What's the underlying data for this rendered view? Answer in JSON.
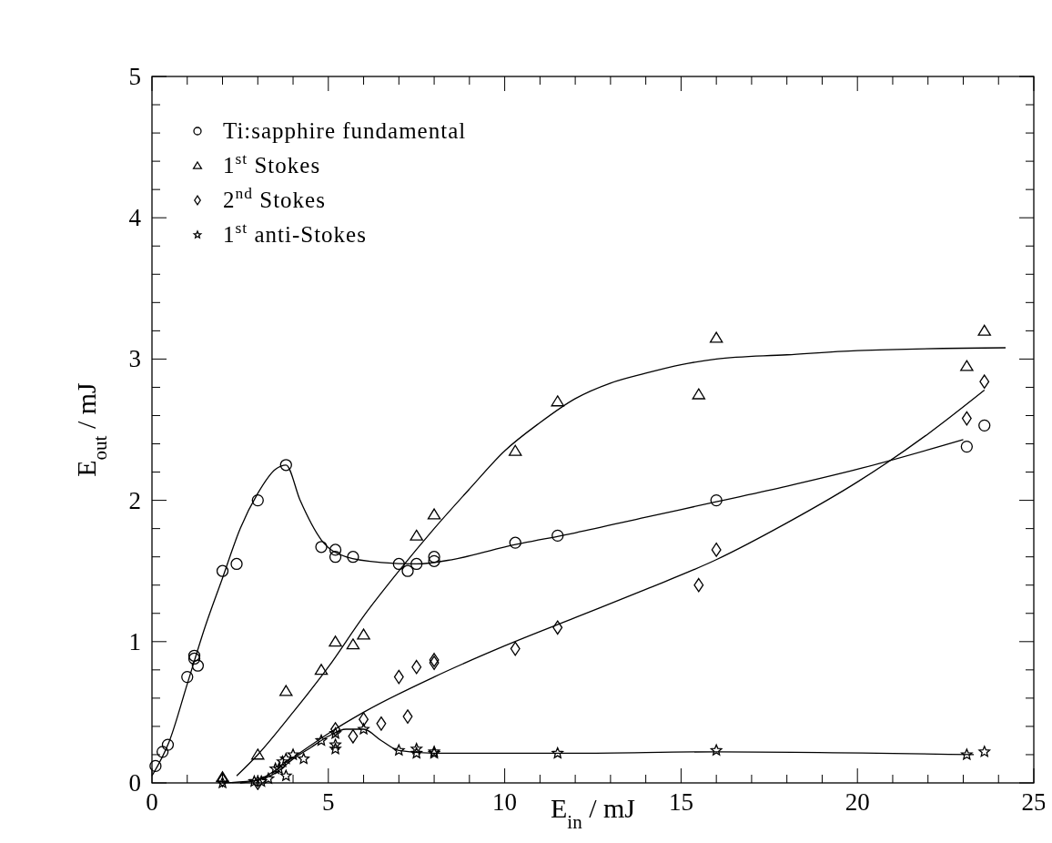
{
  "chart_data": {
    "type": "scatter",
    "xlabel": "E$_{in}$ / mJ",
    "ylabel": "E$_{out}$ / mJ",
    "xlim": [
      0,
      25
    ],
    "ylim": [
      0,
      5
    ],
    "xticks": [
      0,
      {
        "value": 1,
        "label": null
      },
      {
        "value": 2,
        "label": null
      },
      {
        "value": 3,
        "label": null
      },
      {
        "value": 4,
        "label": null
      },
      5,
      {
        "value": 6,
        "label": null
      },
      {
        "value": 7,
        "label": null
      },
      {
        "value": 8,
        "label": null
      },
      {
        "value": 9,
        "label": null
      },
      10,
      {
        "value": 11,
        "label": null
      },
      {
        "value": 12,
        "label": null
      },
      {
        "value": 13,
        "label": null
      },
      {
        "value": 14,
        "label": null
      },
      15,
      {
        "value": 16,
        "label": null
      },
      {
        "value": 17,
        "label": null
      },
      {
        "value": 18,
        "label": null
      },
      {
        "value": 19,
        "label": null
      },
      20,
      {
        "value": 21,
        "label": null
      },
      {
        "value": 22,
        "label": null
      },
      {
        "value": 23,
        "label": null
      },
      {
        "value": 24,
        "label": null
      },
      25
    ],
    "yticks": [
      0,
      {
        "value": 0.2,
        "label": null
      },
      {
        "value": 0.4,
        "label": null
      },
      {
        "value": 0.6,
        "label": null
      },
      {
        "value": 0.8,
        "label": null
      },
      1,
      {
        "value": 1.2,
        "label": null
      },
      {
        "value": 1.4,
        "label": null
      },
      {
        "value": 1.6,
        "label": null
      },
      {
        "value": 1.8,
        "label": null
      },
      2,
      {
        "value": 2.2,
        "label": null
      },
      {
        "value": 2.4,
        "label": null
      },
      {
        "value": 2.6,
        "label": null
      },
      {
        "value": 2.8,
        "label": null
      },
      3,
      {
        "value": 3.2,
        "label": null
      },
      {
        "value": 3.4,
        "label": null
      },
      {
        "value": 3.6,
        "label": null
      },
      {
        "value": 3.8,
        "label": null
      },
      4,
      {
        "value": 4.2,
        "label": null
      },
      {
        "value": 4.4,
        "label": null
      },
      {
        "value": 4.6,
        "label": null
      },
      {
        "value": 4.8,
        "label": null
      },
      5
    ],
    "grid": false,
    "legend": "top left",
    "series": [
      {
        "name": "Ti:sapphire fundamental",
        "type": "scatter",
        "marker": "circle",
        "color": "#000000",
        "x": [
          0.1,
          0.3,
          0.45,
          1.0,
          1.2,
          1.2,
          1.3,
          2.0,
          2.4,
          3.0,
          3.8,
          4.8,
          5.2,
          5.2,
          5.7,
          7.0,
          7.25,
          7.5,
          8.0,
          8.0,
          10.3,
          11.5,
          16.0,
          23.1,
          23.6
        ],
        "values": [
          0.12,
          0.22,
          0.27,
          0.75,
          0.9,
          0.88,
          0.83,
          1.5,
          1.55,
          2.0,
          2.25,
          1.67,
          1.65,
          1.6,
          1.6,
          1.55,
          1.5,
          1.55,
          1.6,
          1.57,
          1.7,
          1.75,
          2.0,
          2.38,
          2.53
        ]
      },
      {
        "name": "1$^{st}$ Stokes",
        "type": "scatter",
        "marker": "triangle",
        "color": "#000000",
        "x": [
          2,
          3,
          3.8,
          4.8,
          5.2,
          5.7,
          6.0,
          7.5,
          8.0,
          10.3,
          11.5,
          15.5,
          16,
          23.1,
          23.6
        ],
        "values": [
          0.04,
          0.2,
          0.65,
          0.8,
          1.0,
          0.98,
          1.05,
          1.75,
          1.9,
          2.35,
          2.7,
          2.75,
          3.15,
          2.95,
          3.2
        ]
      },
      {
        "name": "2$^{nd}$ Stokes",
        "type": "scatter",
        "marker": "diamond",
        "color": "#000000",
        "x": [
          2,
          3,
          5.2,
          5.7,
          6.0,
          6.5,
          7.0,
          7.25,
          7.5,
          8.0,
          8.0,
          10.3,
          11.5,
          15.5,
          16,
          23.1,
          23.6
        ],
        "values": [
          0.02,
          0.0,
          0.38,
          0.33,
          0.45,
          0.42,
          0.75,
          0.47,
          0.82,
          0.85,
          0.87,
          0.95,
          1.1,
          1.4,
          1.65,
          2.58,
          2.84
        ]
      },
      {
        "name": "1$^{st}$ anti-Stokes",
        "type": "scatter",
        "marker": "star",
        "color": "#000000",
        "x": [
          2,
          2.9,
          3.1,
          3.3,
          3.5,
          3.6,
          3.7,
          3.8,
          3.8,
          4.0,
          4.3,
          4.8,
          5.2,
          5.2,
          5.2,
          6.0,
          7.0,
          7.5,
          7.5,
          8.0,
          8.0,
          11.5,
          16,
          23.1,
          23.6
        ],
        "values": [
          0.0,
          0.01,
          0.01,
          0.03,
          0.1,
          0.1,
          0.15,
          0.17,
          0.05,
          0.2,
          0.17,
          0.3,
          0.35,
          0.27,
          0.24,
          0.38,
          0.23,
          0.24,
          0.21,
          0.22,
          0.21,
          0.21,
          0.23,
          0.2,
          0.22
        ]
      },
      {
        "type": "line",
        "marker": "none",
        "color": "#000000",
        "x": [
          0,
          0.5,
          1,
          1.5,
          2,
          2.5,
          3,
          3.5,
          3.8,
          4.2,
          4.8,
          5.5,
          6.5,
          7.5,
          8.5,
          10,
          12,
          14,
          16,
          18,
          20,
          23
        ],
        "values": [
          0.05,
          0.3,
          0.7,
          1.1,
          1.45,
          1.8,
          2.05,
          2.22,
          2.25,
          2.0,
          1.72,
          1.6,
          1.56,
          1.55,
          1.58,
          1.67,
          1.77,
          1.88,
          1.99,
          2.1,
          2.22,
          2.43
        ]
      },
      {
        "type": "line",
        "marker": "none",
        "color": "#000000",
        "x": [
          2.4,
          3,
          4,
          5,
          6,
          7,
          8,
          9,
          10,
          11,
          12,
          13,
          14,
          15,
          16,
          18,
          20,
          24.2
        ],
        "values": [
          0.05,
          0.2,
          0.5,
          0.82,
          1.18,
          1.5,
          1.8,
          2.08,
          2.35,
          2.55,
          2.72,
          2.83,
          2.9,
          2.96,
          3.0,
          3.03,
          3.06,
          3.08
        ]
      },
      {
        "type": "line",
        "marker": "none",
        "color": "#000000",
        "x": [
          2.5,
          3,
          4,
          5,
          6,
          8,
          10,
          12,
          14,
          16,
          18,
          20,
          22,
          23.6
        ],
        "values": [
          0,
          0.02,
          0.18,
          0.35,
          0.5,
          0.75,
          0.97,
          1.17,
          1.37,
          1.58,
          1.84,
          2.13,
          2.47,
          2.78
        ]
      },
      {
        "type": "line",
        "marker": "none",
        "color": "#000000",
        "x": [
          2,
          3,
          3.5,
          4,
          4.5,
          5,
          5.5,
          6,
          6.5,
          7,
          8,
          12,
          16,
          23.3
        ],
        "values": [
          0,
          0.02,
          0.07,
          0.17,
          0.25,
          0.33,
          0.38,
          0.38,
          0.3,
          0.23,
          0.21,
          0.21,
          0.22,
          0.2
        ]
      }
    ]
  }
}
